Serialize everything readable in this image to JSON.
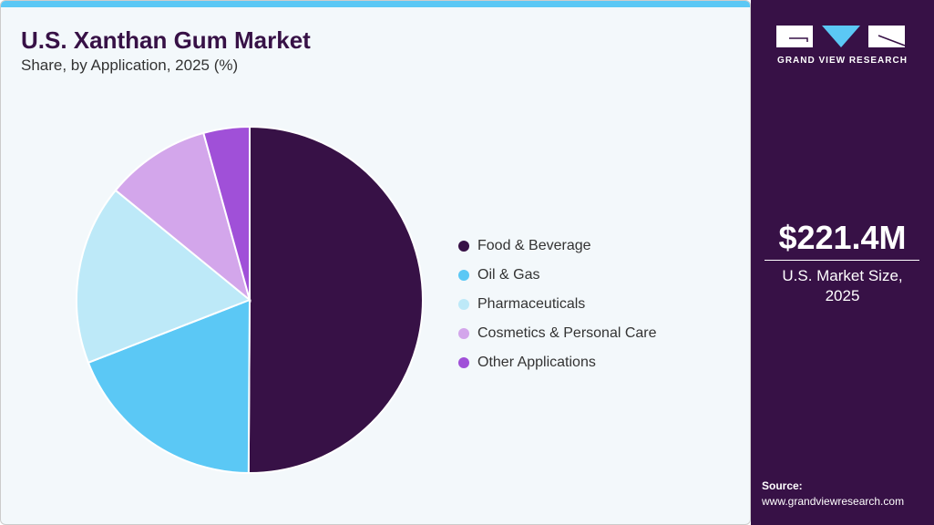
{
  "header": {
    "title": "U.S. Xanthan Gum Market",
    "subtitle": "Share, by Application, 2025 (%)"
  },
  "chart_data": {
    "type": "pie",
    "title": "U.S. Xanthan Gum Market",
    "subtitle": "Share, by Application, 2025 (%)",
    "legend_position": "right",
    "categories": [
      "Food & Beverage",
      "Oil & Gas",
      "Pharmaceuticals",
      "Cosmetics & Personal Care",
      "Other Applications"
    ],
    "values": [
      50.1,
      19.0,
      16.8,
      9.8,
      4.3
    ],
    "colors": [
      "#371146",
      "#5bc8f5",
      "#bde9f8",
      "#d3a6eb",
      "#a050d8"
    ]
  },
  "sidebar": {
    "logo_text": "GRAND VIEW RESEARCH",
    "market_size": "$221.4M",
    "market_label_line1": "U.S. Market Size,",
    "market_label_line2": "2025",
    "source_label": "Source:",
    "source_url": "www.grandviewresearch.com"
  }
}
